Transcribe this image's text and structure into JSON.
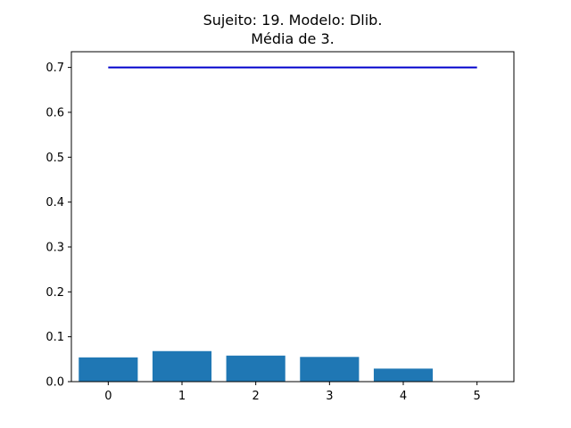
{
  "chart_data": {
    "type": "bar",
    "title": [
      "Sujeito: 19. Modelo: Dlib.",
      "Média de 3."
    ],
    "xlabel": "",
    "ylabel": "",
    "categories": [
      0,
      1,
      2,
      3,
      4
    ],
    "values": [
      0.054,
      0.068,
      0.058,
      0.055,
      0.029
    ],
    "xlim": [
      -0.5,
      5.5
    ],
    "ylim": [
      0.0,
      0.735
    ],
    "xticks": [
      "0",
      "1",
      "2",
      "3",
      "4",
      "5"
    ],
    "yticks": [
      "0.0",
      "0.1",
      "0.2",
      "0.3",
      "0.4",
      "0.5",
      "0.6",
      "0.7"
    ],
    "threshold_line": {
      "x": [
        0,
        5
      ],
      "y": 0.7,
      "color": "#0000cc"
    },
    "bar_color": "#1f77b4",
    "grid": false,
    "legend": "none"
  }
}
